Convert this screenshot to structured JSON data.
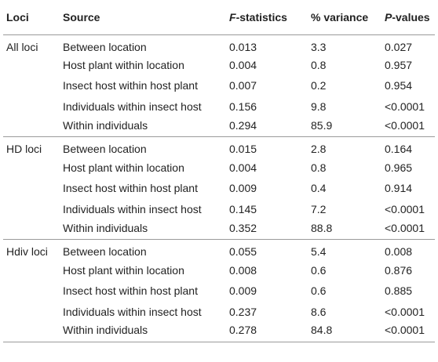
{
  "header": {
    "loci": "Loci",
    "source": "Source",
    "f_statistics_letter": "F",
    "f_statistics_rest": "-statistics",
    "variance": "% variance",
    "p_values_letter": "P",
    "p_values_rest": "-values"
  },
  "groups": [
    {
      "loci": "All loci",
      "rows": [
        {
          "source": "Between location",
          "f": "0.013",
          "variance": "3.3",
          "p": "0.027"
        },
        {
          "source": "Host plant within location",
          "f": "0.004",
          "variance": "0.8",
          "p": "0.957"
        },
        {
          "source": "Insect host within host plant",
          "f": "0.007",
          "variance": "0.2",
          "p": "0.954"
        },
        {
          "source": "Individuals within insect host",
          "f": "0.156",
          "variance": "9.8",
          "p": "<0.0001"
        },
        {
          "source": "Within individuals",
          "f": "0.294",
          "variance": "85.9",
          "p": "<0.0001"
        }
      ]
    },
    {
      "loci": "HD loci",
      "rows": [
        {
          "source": "Between location",
          "f": "0.015",
          "variance": "2.8",
          "p": "0.164"
        },
        {
          "source": "Host plant within location",
          "f": "0.004",
          "variance": "0.8",
          "p": "0.965"
        },
        {
          "source": "Insect host within host plant",
          "f": "0.009",
          "variance": "0.4",
          "p": "0.914"
        },
        {
          "source": "Individuals within insect host",
          "f": "0.145",
          "variance": "7.2",
          "p": "<0.0001"
        },
        {
          "source": "Within individuals",
          "f": "0.352",
          "variance": "88.8",
          "p": "<0.0001"
        }
      ]
    },
    {
      "loci": "Hdiv loci",
      "rows": [
        {
          "source": "Between location",
          "f": "0.055",
          "variance": "5.4",
          "p": "0.008"
        },
        {
          "source": "Host plant within location",
          "f": "0.008",
          "variance": "0.6",
          "p": "0.876"
        },
        {
          "source": "Insect host within host plant",
          "f": "0.009",
          "variance": "0.6",
          "p": "0.885"
        },
        {
          "source": "Individuals within insect host",
          "f": "0.237",
          "variance": "8.6",
          "p": "<0.0001"
        },
        {
          "source": "Within individuals",
          "f": "0.278",
          "variance": "84.8",
          "p": "<0.0001"
        }
      ]
    }
  ]
}
